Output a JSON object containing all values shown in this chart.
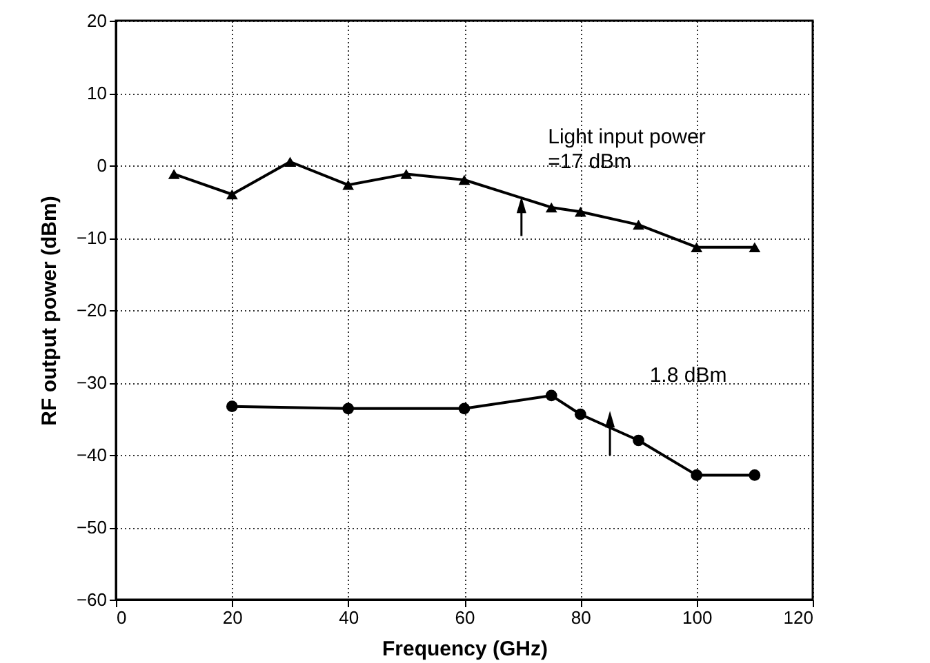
{
  "chart_data": {
    "type": "line",
    "xlabel": "Frequency (GHz)",
    "ylabel": "RF output power (dBm)",
    "xlim": [
      0,
      120
    ],
    "xticks": [
      0,
      20,
      40,
      60,
      80,
      100,
      120
    ],
    "ylim": [
      -60,
      20
    ],
    "yticks": [
      -60,
      -50,
      -40,
      -30,
      -20,
      -10,
      0,
      10,
      20
    ],
    "grid": true,
    "line_style": "solid",
    "series": [
      {
        "color": "#000000",
        "marker": "triangle",
        "x": [
          10,
          20,
          30,
          40,
          50,
          60,
          75,
          80,
          90,
          100,
          110
        ],
        "values": [
          -1.2,
          -4,
          0.5,
          -2.7,
          -1.2,
          -2,
          -5.8,
          -6.4,
          -8.2,
          -11.3,
          -11.3
        ]
      },
      {
        "color": "#000000",
        "marker": "circle",
        "x": [
          20,
          40,
          60,
          75,
          80,
          90,
          100,
          110
        ],
        "values": [
          -33.3,
          -33.6,
          -33.6,
          -31.8,
          -34.4,
          -38,
          -42.8,
          -42.8
        ]
      }
    ],
    "annotations": [
      "Light input power\n=17 dBm",
      "1.8 dBm"
    ]
  }
}
